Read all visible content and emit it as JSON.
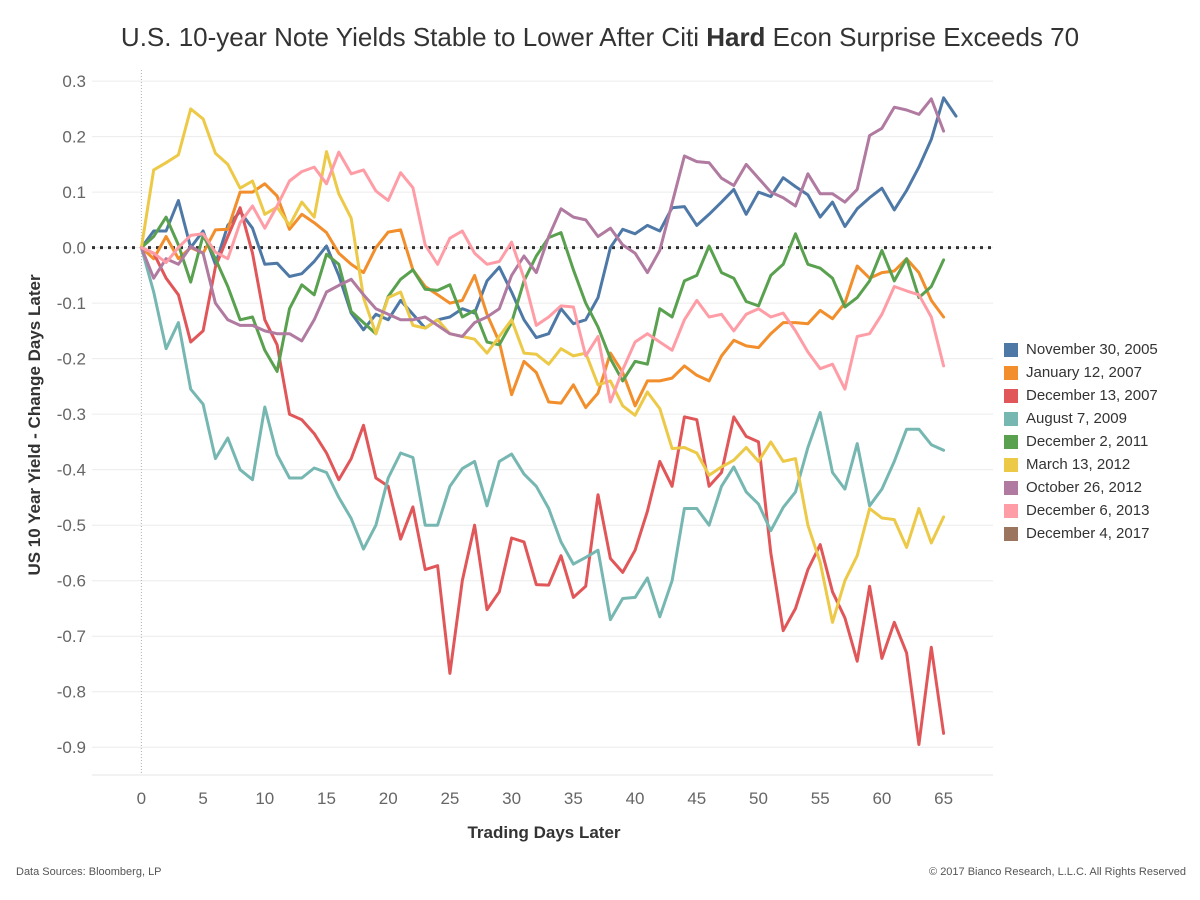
{
  "title": {
    "before": "U.S. 10-year Note Yields Stable to Lower After Citi ",
    "bold": "Hard",
    "after": " Econ Surprise Exceeds 70"
  },
  "footer": {
    "source": "Data Sources: Bloomberg, LP",
    "copyright": "© 2017 Bianco Research, L.L.C. All Rights Reserved"
  },
  "chart_data": {
    "type": "line",
    "xlabel": "Trading Days Later",
    "ylabel": "US 10 Year Yield - Change Days Later",
    "xlim": [
      -4,
      69
    ],
    "ylim": [
      -0.95,
      0.32
    ],
    "xticks": [
      0,
      5,
      10,
      15,
      20,
      25,
      30,
      35,
      40,
      45,
      50,
      55,
      60,
      65
    ],
    "yticks": [
      0.3,
      0.2,
      0.1,
      0.0,
      -0.1,
      -0.2,
      -0.3,
      -0.4,
      -0.5,
      -0.6,
      -0.7,
      -0.8,
      -0.9
    ],
    "ytick_labels": [
      "0.3",
      "0.2",
      "0.1",
      "0.0",
      "-0.1",
      "-0.2",
      "-0.3",
      "-0.4",
      "-0.5",
      "-0.6",
      "-0.7",
      "-0.8",
      "-0.9"
    ],
    "zero_line": "dotted",
    "legend_position": "right",
    "series": [
      {
        "name": "November 30, 2005",
        "color": "#4e79a7",
        "values": [
          0,
          0.03,
          0.03,
          0.085,
          0.0,
          0.03,
          -0.03,
          0.04,
          0.065,
          0.035,
          -0.03,
          -0.028,
          -0.052,
          -0.047,
          -0.025,
          0.003,
          -0.05,
          -0.118,
          -0.148,
          -0.12,
          -0.13,
          -0.095,
          -0.12,
          -0.145,
          -0.13,
          -0.125,
          -0.11,
          -0.118,
          -0.06,
          -0.035,
          -0.08,
          -0.13,
          -0.162,
          -0.155,
          -0.11,
          -0.137,
          -0.13,
          -0.09,
          0.0,
          0.033,
          0.025,
          0.04,
          0.03,
          0.072,
          0.074,
          0.04,
          0.06,
          0.082,
          0.105,
          0.06,
          0.1,
          0.092,
          0.126,
          0.11,
          0.095,
          0.055,
          0.082,
          0.038,
          0.07,
          0.09,
          0.107,
          0.068,
          0.103,
          0.145,
          0.195,
          0.27,
          0.237
        ]
      },
      {
        "name": "January 12, 2007",
        "color": "#f28e2b",
        "values": [
          0,
          -0.02,
          0.02,
          -0.02,
          0.0,
          -0.01,
          0.032,
          0.033,
          0.1,
          0.1,
          0.115,
          0.093,
          0.033,
          0.06,
          0.045,
          0.027,
          -0.01,
          -0.03,
          -0.045,
          0.0,
          0.028,
          0.032,
          -0.04,
          -0.07,
          -0.085,
          -0.1,
          -0.095,
          -0.05,
          -0.12,
          -0.17,
          -0.265,
          -0.205,
          -0.225,
          -0.278,
          -0.28,
          -0.247,
          -0.288,
          -0.262,
          -0.19,
          -0.225,
          -0.285,
          -0.24,
          -0.24,
          -0.235,
          -0.213,
          -0.23,
          -0.24,
          -0.195,
          -0.167,
          -0.177,
          -0.18,
          -0.155,
          -0.135,
          -0.135,
          -0.137,
          -0.113,
          -0.128,
          -0.1,
          -0.033,
          -0.055,
          -0.045,
          -0.042,
          -0.02,
          -0.045,
          -0.095,
          -0.125
        ]
      },
      {
        "name": "December 13, 2007",
        "color": "#e15759",
        "values": [
          0,
          -0.01,
          -0.055,
          -0.085,
          -0.17,
          -0.15,
          -0.035,
          0.02,
          0.072,
          -0.01,
          -0.13,
          -0.175,
          -0.3,
          -0.31,
          -0.335,
          -0.37,
          -0.418,
          -0.38,
          -0.32,
          -0.415,
          -0.43,
          -0.525,
          -0.467,
          -0.58,
          -0.573,
          -0.767,
          -0.6,
          -0.5,
          -0.652,
          -0.62,
          -0.523,
          -0.53,
          -0.607,
          -0.608,
          -0.555,
          -0.63,
          -0.61,
          -0.445,
          -0.56,
          -0.585,
          -0.545,
          -0.475,
          -0.385,
          -0.43,
          -0.305,
          -0.31,
          -0.43,
          -0.405,
          -0.305,
          -0.34,
          -0.35,
          -0.55,
          -0.69,
          -0.65,
          -0.58,
          -0.535,
          -0.62,
          -0.667,
          -0.745,
          -0.61,
          -0.74,
          -0.675,
          -0.73,
          -0.895,
          -0.72,
          -0.875
        ]
      },
      {
        "name": "August 7, 2009",
        "color": "#76b7b2",
        "values": [
          0,
          -0.08,
          -0.182,
          -0.135,
          -0.255,
          -0.282,
          -0.38,
          -0.343,
          -0.4,
          -0.418,
          -0.287,
          -0.373,
          -0.415,
          -0.415,
          -0.397,
          -0.405,
          -0.45,
          -0.488,
          -0.543,
          -0.5,
          -0.415,
          -0.37,
          -0.378,
          -0.5,
          -0.5,
          -0.43,
          -0.398,
          -0.385,
          -0.465,
          -0.385,
          -0.372,
          -0.408,
          -0.43,
          -0.47,
          -0.53,
          -0.57,
          -0.558,
          -0.545,
          -0.67,
          -0.632,
          -0.63,
          -0.595,
          -0.665,
          -0.6,
          -0.47,
          -0.47,
          -0.5,
          -0.43,
          -0.395,
          -0.44,
          -0.462,
          -0.51,
          -0.468,
          -0.44,
          -0.36,
          -0.297,
          -0.405,
          -0.435,
          -0.353,
          -0.465,
          -0.435,
          -0.385,
          -0.327,
          -0.327,
          -0.355,
          -0.365
        ]
      },
      {
        "name": "December 2, 2011",
        "color": "#59a14f",
        "values": [
          0,
          0.02,
          0.055,
          0.005,
          -0.062,
          0.022,
          -0.02,
          -0.07,
          -0.13,
          -0.125,
          -0.185,
          -0.223,
          -0.11,
          -0.067,
          -0.085,
          -0.012,
          -0.03,
          -0.115,
          -0.135,
          -0.155,
          -0.088,
          -0.057,
          -0.04,
          -0.075,
          -0.077,
          -0.067,
          -0.125,
          -0.113,
          -0.17,
          -0.175,
          -0.135,
          -0.06,
          -0.015,
          0.018,
          0.027,
          -0.04,
          -0.1,
          -0.143,
          -0.2,
          -0.24,
          -0.205,
          -0.21,
          -0.11,
          -0.125,
          -0.06,
          -0.05,
          0.003,
          -0.045,
          -0.055,
          -0.097,
          -0.105,
          -0.05,
          -0.03,
          0.025,
          -0.03,
          -0.037,
          -0.055,
          -0.107,
          -0.09,
          -0.06,
          -0.005,
          -0.06,
          -0.02,
          -0.09,
          -0.07,
          -0.022
        ]
      },
      {
        "name": "March 13, 2012",
        "color": "#edc948",
        "values": [
          0,
          0.14,
          0.153,
          0.167,
          0.25,
          0.232,
          0.17,
          0.15,
          0.107,
          0.12,
          0.06,
          0.073,
          0.04,
          0.082,
          0.055,
          0.173,
          0.097,
          0.053,
          -0.09,
          -0.155,
          -0.09,
          -0.08,
          -0.14,
          -0.145,
          -0.13,
          -0.155,
          -0.16,
          -0.165,
          -0.19,
          -0.16,
          -0.13,
          -0.19,
          -0.192,
          -0.21,
          -0.182,
          -0.195,
          -0.19,
          -0.247,
          -0.24,
          -0.285,
          -0.302,
          -0.26,
          -0.29,
          -0.362,
          -0.36,
          -0.37,
          -0.41,
          -0.395,
          -0.383,
          -0.36,
          -0.385,
          -0.35,
          -0.385,
          -0.38,
          -0.5,
          -0.567,
          -0.675,
          -0.6,
          -0.555,
          -0.47,
          -0.487,
          -0.49,
          -0.54,
          -0.47,
          -0.532,
          -0.485
        ]
      },
      {
        "name": "October 26, 2012",
        "color": "#b07aa1",
        "values": [
          0,
          -0.055,
          -0.02,
          -0.03,
          0.002,
          -0.01,
          -0.1,
          -0.13,
          -0.14,
          -0.14,
          -0.15,
          -0.155,
          -0.155,
          -0.168,
          -0.13,
          -0.08,
          -0.068,
          -0.057,
          -0.085,
          -0.11,
          -0.12,
          -0.13,
          -0.13,
          -0.125,
          -0.14,
          -0.155,
          -0.16,
          -0.135,
          -0.125,
          -0.11,
          -0.05,
          -0.015,
          -0.045,
          0.02,
          0.07,
          0.055,
          0.05,
          0.02,
          0.035,
          0.005,
          -0.01,
          -0.045,
          -0.005,
          0.08,
          0.165,
          0.155,
          0.153,
          0.125,
          0.112,
          0.15,
          0.125,
          0.1,
          0.09,
          0.075,
          0.133,
          0.097,
          0.097,
          0.082,
          0.105,
          0.202,
          0.215,
          0.253,
          0.248,
          0.24,
          0.268,
          0.21
        ]
      },
      {
        "name": "December 6, 2013",
        "color": "#ff9da7",
        "values": [
          0,
          -0.01,
          -0.027,
          0.0,
          0.022,
          0.025,
          -0.008,
          -0.02,
          0.045,
          0.075,
          0.035,
          0.075,
          0.12,
          0.137,
          0.145,
          0.115,
          0.172,
          0.133,
          0.14,
          0.102,
          0.085,
          0.135,
          0.108,
          0.005,
          -0.03,
          0.017,
          0.03,
          -0.01,
          -0.03,
          -0.025,
          0.01,
          -0.055,
          -0.14,
          -0.125,
          -0.105,
          -0.107,
          -0.195,
          -0.16,
          -0.278,
          -0.22,
          -0.17,
          -0.155,
          -0.17,
          -0.185,
          -0.13,
          -0.095,
          -0.125,
          -0.12,
          -0.15,
          -0.12,
          -0.11,
          -0.125,
          -0.118,
          -0.15,
          -0.188,
          -0.218,
          -0.21,
          -0.255,
          -0.16,
          -0.155,
          -0.12,
          -0.07,
          -0.078,
          -0.085,
          -0.125,
          -0.213
        ]
      },
      {
        "name": "December 4, 2017",
        "color": "#9c755f",
        "values": []
      }
    ]
  }
}
